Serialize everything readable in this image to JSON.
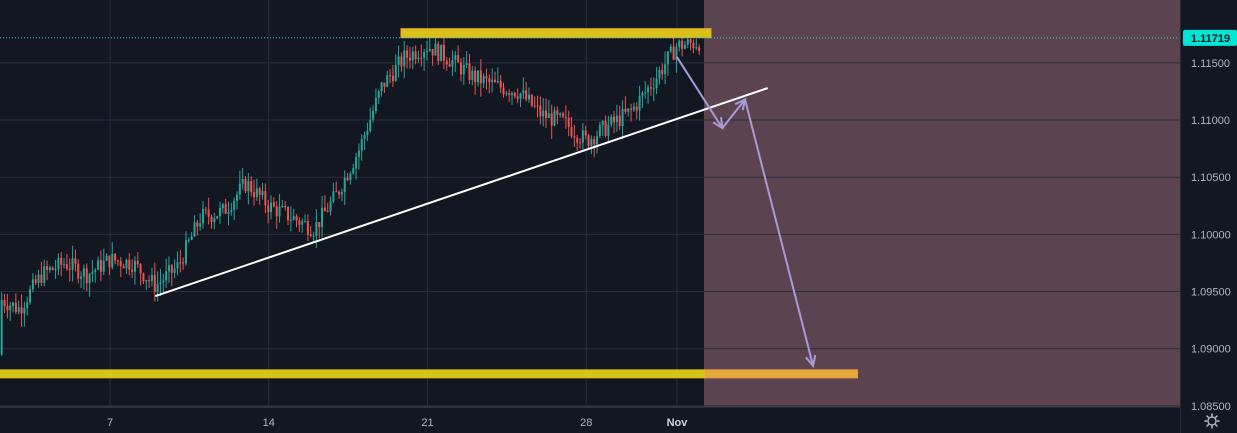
{
  "chart_data": {
    "type": "candlestick",
    "symbol_pair_price": "1.11719",
    "y_ticks": [
      "1.11500",
      "1.11000",
      "1.10500",
      "1.10000",
      "1.09500",
      "1.09000",
      "1.08500"
    ],
    "y_tick_values": [
      1.115,
      1.11,
      1.105,
      1.1,
      1.095,
      1.09,
      1.085
    ],
    "x_ticks": [
      {
        "label": "7",
        "bold": false
      },
      {
        "label": "14",
        "bold": false
      },
      {
        "label": "21",
        "bold": false
      },
      {
        "label": "28",
        "bold": false
      },
      {
        "label": "Nov",
        "bold": true
      }
    ],
    "ylim": [
      1.0849,
      1.1205
    ],
    "last_price": 1.11719,
    "resistance_level": 1.1176,
    "support_level": 1.0878,
    "trendline": {
      "from": {
        "date": "Oct 9",
        "price": 1.0946
      },
      "to": {
        "date": "Nov 5",
        "price": 1.1128
      }
    },
    "projection_path": [
      {
        "date": "Nov 1",
        "price": 1.1155
      },
      {
        "date": "Nov 3",
        "price": 1.1093
      },
      {
        "date": "Nov 4",
        "price": 1.1118
      },
      {
        "date": "Nov 7",
        "price": 1.0885
      }
    ],
    "price_keyframes": [
      {
        "date": "Oct 1",
        "price": 1.0895
      },
      {
        "date": "Oct 2",
        "price": 1.0945
      },
      {
        "date": "Oct 3",
        "price": 1.0935
      },
      {
        "date": "Oct 4",
        "price": 1.0965
      },
      {
        "date": "Oct 5",
        "price": 1.0975
      },
      {
        "date": "Oct 6",
        "price": 1.0965
      },
      {
        "date": "Oct 7",
        "price": 1.0978
      },
      {
        "date": "Oct 8",
        "price": 1.0975
      },
      {
        "date": "Oct 9",
        "price": 1.0955
      },
      {
        "date": "Oct 10",
        "price": 1.0972
      },
      {
        "date": "Oct 11",
        "price": 1.1015
      },
      {
        "date": "Oct 12",
        "price": 1.102
      },
      {
        "date": "Oct 13",
        "price": 1.1045
      },
      {
        "date": "Oct 14",
        "price": 1.1025
      },
      {
        "date": "Oct 15",
        "price": 1.1015
      },
      {
        "date": "Oct 16",
        "price": 1.1005
      },
      {
        "date": "Oct 17",
        "price": 1.1035
      },
      {
        "date": "Oct 18",
        "price": 1.1075
      },
      {
        "date": "Oct 19",
        "price": 1.113
      },
      {
        "date": "Oct 20",
        "price": 1.1155
      },
      {
        "date": "Oct 21",
        "price": 1.1165
      },
      {
        "date": "Oct 22",
        "price": 1.1153
      },
      {
        "date": "Oct 23",
        "price": 1.1138
      },
      {
        "date": "Oct 24",
        "price": 1.113
      },
      {
        "date": "Oct 25",
        "price": 1.1125
      },
      {
        "date": "Oct 26",
        "price": 1.1105
      },
      {
        "date": "Oct 27",
        "price": 1.1098
      },
      {
        "date": "Oct 28",
        "price": 1.1082
      },
      {
        "date": "Oct 29",
        "price": 1.1095
      },
      {
        "date": "Oct 30",
        "price": 1.1108
      },
      {
        "date": "Oct 31",
        "price": 1.1135
      },
      {
        "date": "Nov 1",
        "price": 1.1165
      },
      {
        "date": "Nov 2",
        "price": 1.1168
      }
    ],
    "colors": {
      "background": "#131722",
      "future_zone": "#5c4350",
      "bull": "#26a69a",
      "bear": "#ef5350",
      "level": "#d8c118",
      "level_right": "#e5a63c",
      "trendline": "#ffffff",
      "projection": "#a89bd6",
      "last_price_badge": "#00e5d6",
      "grid": "#2a2e39"
    }
  }
}
